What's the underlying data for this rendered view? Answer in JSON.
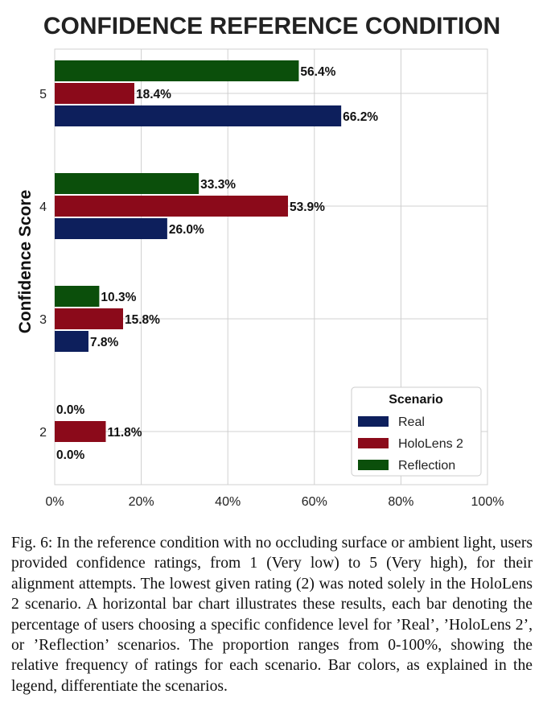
{
  "chart_data": {
    "type": "bar",
    "orientation": "horizontal",
    "title": "CONFIDENCE REFERENCE CONDITION",
    "ylabel": "Confidence Score",
    "categories": [
      "5",
      "4",
      "3",
      "2"
    ],
    "xlim": [
      0,
      100
    ],
    "x_ticks": [
      "0%",
      "20%",
      "40%",
      "60%",
      "80%",
      "100%"
    ],
    "grid": true,
    "legend": {
      "title": "Scenario",
      "placement": "lower-right",
      "entries": [
        "Real",
        "HoloLens 2",
        "Reflection"
      ]
    },
    "series": [
      {
        "name": "Real",
        "color": "#0d1f5c",
        "values": [
          66.2,
          26.0,
          7.8,
          0.0
        ],
        "labels": [
          "66.2%",
          "26.0%",
          "7.8%",
          "0.0%"
        ]
      },
      {
        "name": "HoloLens 2",
        "color": "#8b0a1a",
        "values": [
          18.4,
          53.9,
          15.8,
          11.8
        ],
        "labels": [
          "18.4%",
          "53.9%",
          "15.8%",
          "11.8%"
        ]
      },
      {
        "name": "Reflection",
        "color": "#0b4f0b",
        "values": [
          56.4,
          33.3,
          10.3,
          0.0
        ],
        "labels": [
          "56.4%",
          "33.3%",
          "10.3%",
          "0.0%"
        ]
      }
    ]
  },
  "caption": "Fig. 6: In the reference condition with no occluding surface or ambient light, users provided confidence ratings, from 1 (Very low) to 5 (Very high), for their alignment attempts. The lowest given rating (2) was noted solely in the HoloLens 2 scenario. A horizontal bar chart illustrates these results, each bar denoting the percentage of users choosing a specific confidence level for ’Real’, ’HoloLens 2’, or ’Reflection’ scenarios. The proportion ranges from 0-100%, showing the relative frequency of ratings for each scenario. Bar colors, as explained in the legend, differentiate the scenarios."
}
